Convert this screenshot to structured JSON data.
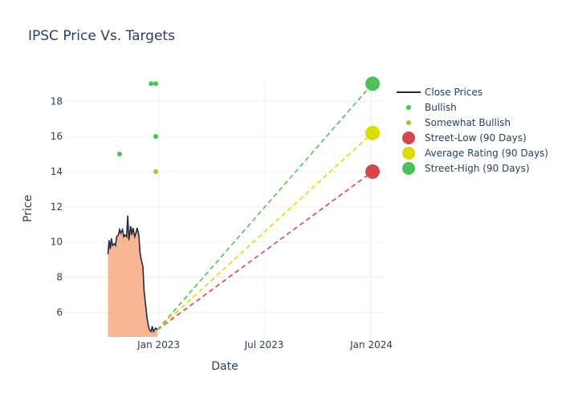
{
  "chart_data": {
    "type": "line",
    "title": "IPSC Price Vs. Targets",
    "xlabel": "Date",
    "ylabel": "Price",
    "x_range": [
      "2022-07-23",
      "2024-01-25"
    ],
    "y_range": [
      4.6,
      19.2
    ],
    "x_ticks": [
      {
        "date": "2023-01-01",
        "label": "Jan 2023"
      },
      {
        "date": "2023-07-01",
        "label": "Jul 2023"
      },
      {
        "date": "2024-01-01",
        "label": "Jan 2024"
      }
    ],
    "y_ticks": [
      6,
      8,
      10,
      12,
      14,
      16,
      18
    ],
    "grid": true,
    "legend_position": "right",
    "close_prices": {
      "name": "Close Prices",
      "color": "#262b3d",
      "fill_color": "#f8b694",
      "points": [
        [
          "2022-10-06",
          9.3
        ],
        [
          "2022-10-08",
          10.1
        ],
        [
          "2022-10-10",
          9.6
        ],
        [
          "2022-10-12",
          10.2
        ],
        [
          "2022-10-14",
          9.8
        ],
        [
          "2022-10-17",
          9.9
        ],
        [
          "2022-10-19",
          9.8
        ],
        [
          "2022-10-21",
          10.3
        ],
        [
          "2022-10-24",
          10.4
        ],
        [
          "2022-10-26",
          10.7
        ],
        [
          "2022-10-28",
          10.5
        ],
        [
          "2022-10-31",
          10.7
        ],
        [
          "2022-11-02",
          10.3
        ],
        [
          "2022-11-04",
          10.4
        ],
        [
          "2022-11-07",
          10.3
        ],
        [
          "2022-11-09",
          11.5
        ],
        [
          "2022-11-11",
          10.1
        ],
        [
          "2022-11-14",
          10.9
        ],
        [
          "2022-11-16",
          10.4
        ],
        [
          "2022-11-18",
          10.8
        ],
        [
          "2022-11-21",
          10.3
        ],
        [
          "2022-11-23",
          10.5
        ],
        [
          "2022-11-25",
          10.8
        ],
        [
          "2022-11-28",
          10.4
        ],
        [
          "2022-11-30",
          9.4
        ],
        [
          "2022-12-02",
          9.0
        ],
        [
          "2022-12-05",
          8.6
        ],
        [
          "2022-12-07",
          7.2
        ],
        [
          "2022-12-09",
          6.6
        ],
        [
          "2022-12-12",
          5.7
        ],
        [
          "2022-12-14",
          5.3
        ],
        [
          "2022-12-16",
          5.0
        ],
        [
          "2022-12-19",
          4.9
        ],
        [
          "2022-12-21",
          5.2
        ],
        [
          "2022-12-23",
          4.9
        ],
        [
          "2022-12-27",
          5.1
        ],
        [
          "2022-12-30",
          5.0
        ]
      ]
    },
    "analyst_ratings": [
      {
        "name": "Bullish",
        "color": "#4cc159",
        "points": [
          [
            "2022-10-26",
            15
          ],
          [
            "2022-12-19",
            19
          ],
          [
            "2022-12-27",
            19
          ],
          [
            "2022-12-27",
            16
          ]
        ]
      },
      {
        "name": "Somewhat Bullish",
        "color": "#9ac832",
        "points": [
          [
            "2022-12-27",
            14
          ]
        ]
      }
    ],
    "targets": [
      {
        "name": "Street-Low (90 Days)",
        "color": "#d4474b",
        "start": [
          "2022-12-30",
          5.0
        ],
        "end": [
          "2024-01-03",
          14
        ]
      },
      {
        "name": "Average Rating (90 Days)",
        "color": "#dddc00",
        "start": [
          "2022-12-30",
          5.0
        ],
        "end": [
          "2024-01-03",
          16.2
        ]
      },
      {
        "name": "Street-High (90 Days)",
        "color": "#4cc159",
        "start": [
          "2022-12-30",
          5.0
        ],
        "end": [
          "2024-01-03",
          19
        ]
      }
    ]
  }
}
